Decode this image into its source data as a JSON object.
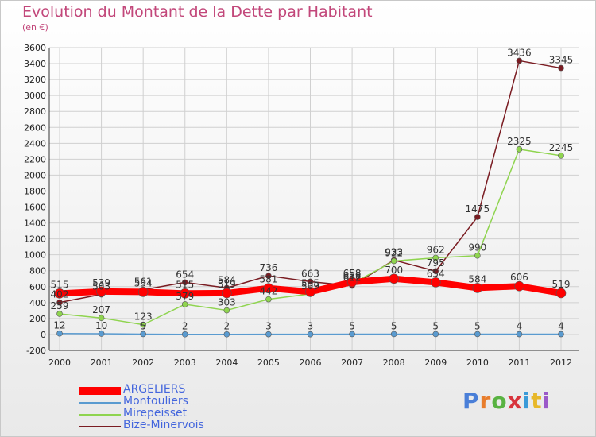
{
  "chart_data": {
    "type": "line",
    "title": "Evolution du Montant de la Dette par Habitant",
    "subtitle": "(en €)",
    "x": [
      "2000",
      "2001",
      "2002",
      "2003",
      "2004",
      "2005",
      "2006",
      "2007",
      "2008",
      "2009",
      "2010",
      "2011",
      "2012"
    ],
    "ylim": [
      -200,
      3600
    ],
    "yticks": [
      -200,
      0,
      200,
      400,
      600,
      800,
      1000,
      1200,
      1400,
      1600,
      1800,
      2000,
      2200,
      2400,
      2600,
      2800,
      3000,
      3200,
      3400,
      3600
    ],
    "grid": true,
    "legend_position": "bottom-left",
    "series": [
      {
        "name": "ARGELIERS",
        "color": "#ff0000",
        "values": [
          515,
          539,
          534,
          515,
          519,
          581,
          535,
          658,
          700,
          654,
          584,
          606,
          519
        ]
      },
      {
        "name": "Montouliers",
        "color": "#5a9bd0",
        "values": [
          12,
          10,
          5,
          2,
          2,
          3,
          3,
          5,
          5,
          5,
          5,
          4,
          4
        ]
      },
      {
        "name": "Mirepeisset",
        "color": "#8fd44f",
        "values": [
          259,
          207,
          123,
          379,
          303,
          442,
          509,
          638,
          922,
          962,
          990,
          2325,
          2245
        ]
      },
      {
        "name": "Bize-Minervois",
        "color": "#7a1c22",
        "values": [
          402,
          503,
          561,
          654,
          584,
          736,
          663,
          612,
          933,
          795,
          1475,
          3436,
          3345
        ]
      }
    ]
  },
  "logo": {
    "letters": [
      "P",
      "r",
      "o",
      "x",
      "i",
      "t",
      "i"
    ],
    "colors": [
      "#4a7fd8",
      "#e87d2c",
      "#59b342",
      "#d8343c",
      "#3a9ad8",
      "#e7b82a",
      "#9b59c9"
    ]
  }
}
